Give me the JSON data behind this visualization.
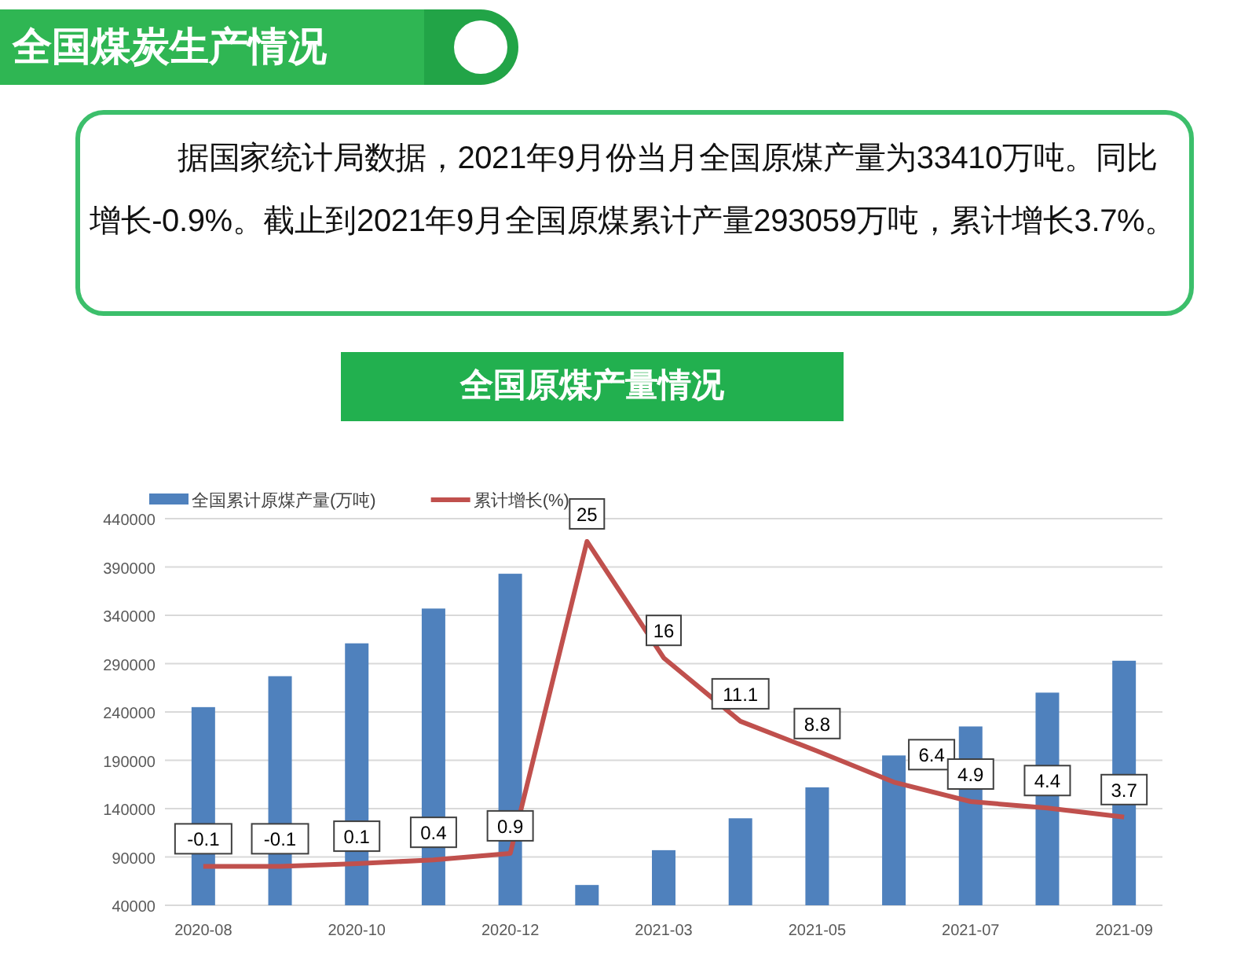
{
  "chart_data": {
    "type": "bar",
    "title": "全国原煤产量情况",
    "annotations": [
      "全国煤炭生产情况",
      "据国家统计局数据，2021年9月份当月全国原煤产量为33410万吨。同比增长-0.9%。截止到2021年9月全国原煤累计产量293059万吨，累计增长3.7%。"
    ],
    "categories": [
      "2020-08",
      null,
      "2020-10",
      null,
      "2020-12",
      null,
      "2021-03",
      null,
      "2021-05",
      null,
      "2021-07",
      null,
      "2021-09"
    ],
    "series": [
      {
        "name": "全国累计原煤产量(万吨)",
        "color": "#4f81bd",
        "values": [
          245000,
          277000,
          311000,
          347000,
          383000,
          61000,
          97000,
          130000,
          162000,
          195000,
          225000,
          260000,
          293000
        ]
      },
      {
        "name": "累计增长(%)",
        "type": "line",
        "axis": "y2",
        "color": "#c0504d",
        "data_labels": true,
        "values": [
          -0.1,
          -0.1,
          0.1,
          0.4,
          0.9,
          25,
          16,
          11.1,
          8.8,
          6.4,
          4.9,
          4.4,
          3.7
        ]
      }
    ],
    "ylim": [
      40000,
      440000
    ],
    "yticks": [
      40000,
      90000,
      140000,
      190000,
      240000,
      290000,
      340000,
      390000,
      440000
    ],
    "grid": "y",
    "legend": "top",
    "marker": "none"
  }
}
